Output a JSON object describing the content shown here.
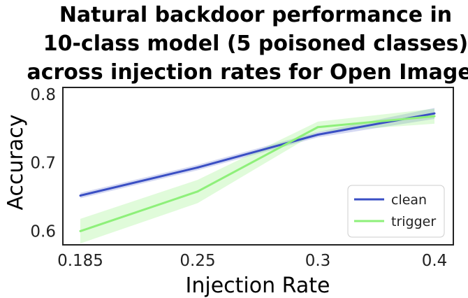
{
  "chart_data": {
    "type": "line",
    "title_lines": [
      "Natural backdoor performance in",
      "10-class model (5 poisoned classes)",
      "across injection rates for Open Images"
    ],
    "xlabel": "Injection Rate",
    "ylabel": "Accuracy",
    "categories": [
      "0.185",
      "0.25",
      "0.3",
      "0.4"
    ],
    "y_ticks": [
      "0.6",
      "0.7",
      "0.8"
    ],
    "ylim": [
      0.58,
      0.81
    ],
    "grid": false,
    "legend_position": "bottom-right",
    "series": [
      {
        "name": "clean",
        "color": "#3a4fc4",
        "values": [
          0.652,
          0.693,
          0.741,
          0.772
        ],
        "band_low": [
          0.648,
          0.689,
          0.737,
          0.764
        ],
        "band_high": [
          0.656,
          0.697,
          0.745,
          0.78
        ]
      },
      {
        "name": "trigger",
        "color": "#8ef07a",
        "values": [
          0.6,
          0.658,
          0.752,
          0.768
        ],
        "band_low": [
          0.582,
          0.641,
          0.745,
          0.757
        ],
        "band_high": [
          0.618,
          0.675,
          0.76,
          0.779
        ]
      }
    ]
  }
}
